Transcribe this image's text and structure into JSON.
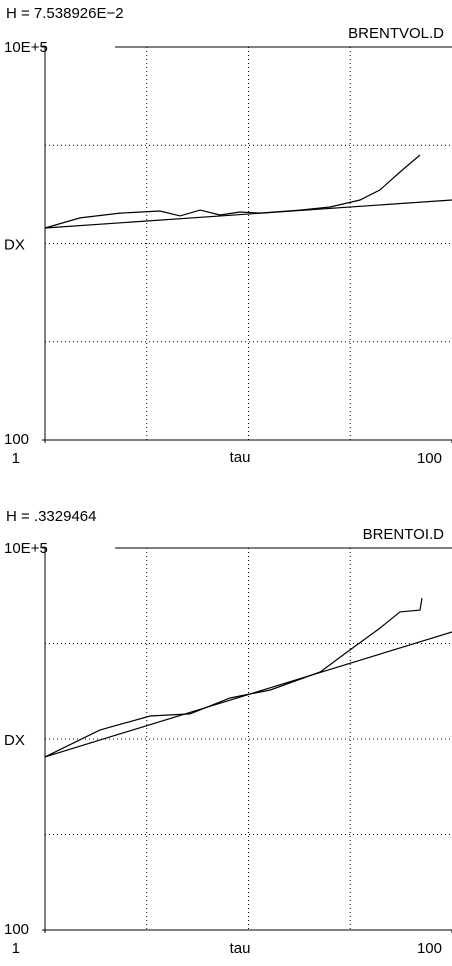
{
  "chart_data": [
    {
      "type": "line",
      "title": "H = 7.538926E−2",
      "annotation": "BRENTVOL.D",
      "xlabel": "tau",
      "ylabel": "DX",
      "log_x": true,
      "log_y": true,
      "xlim": [
        1,
        100
      ],
      "ylim": [
        100,
        1000000
      ],
      "xticks": [
        1,
        100
      ],
      "yticks": [
        100,
        {
          "value": 1000000,
          "label": "10E+5"
        }
      ],
      "xgrid": [
        3.162,
        10,
        31.62
      ],
      "ygrid": [
        1000,
        10000,
        100000
      ],
      "grid": true,
      "series": [
        {
          "color": "#000000",
          "x": [
            1,
            1.486,
            2.34,
            3.67,
            4.61,
            5.78,
            7.24,
            9.08,
            11.4,
            17.9,
            25.2,
            35.3,
            44.3,
            55.5,
            69.6
          ],
          "values": [
            14380,
            18200,
            20400,
            21400,
            19100,
            21900,
            19500,
            20900,
            20400,
            21900,
            23500,
            27700,
            35100,
            53400,
            79600
          ]
        },
        {
          "color": "#000000",
          "x": [
            1,
            100
          ],
          "values": [
            14380,
            27700
          ]
        }
      ]
    },
    {
      "type": "line",
      "title": "H = .3329464",
      "annotation": "BRENTOI.D",
      "xlabel": "tau",
      "ylabel": "DX",
      "log_x": true,
      "log_y": true,
      "xlim": [
        1,
        100
      ],
      "ylim": [
        100,
        1000000
      ],
      "xticks": [
        1,
        100
      ],
      "yticks": [
        100,
        {
          "value": 1000000,
          "label": "10E+5"
        }
      ],
      "xgrid": [
        3.162,
        10,
        31.62
      ],
      "ygrid": [
        1000,
        10000,
        100000
      ],
      "grid": true,
      "series": [
        {
          "color": "#000000",
          "x": [
            1,
            1.86,
            3.28,
            5.16,
            8.11,
            12.8,
            22.5,
            31.5,
            44.3,
            55.5,
            69.6,
            71.2
          ],
          "values": [
            6490,
            12400,
            17400,
            18300,
            26900,
            32600,
            50300,
            85500,
            145000,
            214000,
            224000,
            299000
          ]
        },
        {
          "color": "#000000",
          "x": [
            1,
            100
          ],
          "values": [
            6490,
            131800
          ]
        }
      ]
    }
  ]
}
